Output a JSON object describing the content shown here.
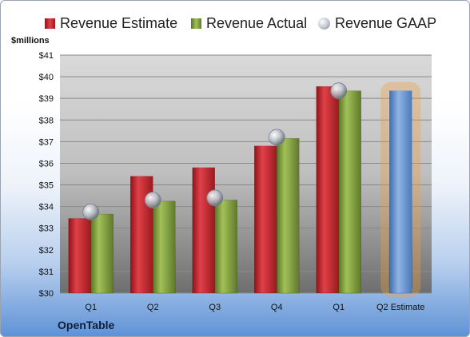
{
  "chart_data": {
    "type": "bar",
    "ylabel": "$millions",
    "ylim": [
      30,
      41
    ],
    "y_ticks": [
      "$30",
      "$31",
      "$32",
      "$33",
      "$34",
      "$35",
      "$36",
      "$37",
      "$38",
      "$39",
      "$40",
      "$41"
    ],
    "categories": [
      "Q1",
      "Q2",
      "Q3",
      "Q4",
      "Q1",
      "Q2 Estimate"
    ],
    "series": [
      {
        "name": "Revenue Estimate",
        "color": "#c0282e",
        "values": [
          33.45,
          35.4,
          35.8,
          36.8,
          39.55,
          null
        ]
      },
      {
        "name": "Revenue Actual",
        "color": "#7f9e3c",
        "values": [
          33.65,
          34.25,
          34.3,
          37.15,
          39.35,
          null
        ]
      },
      {
        "name": "Revenue GAAP",
        "color": "#b8bec8",
        "marker": "circle",
        "values": [
          33.75,
          34.3,
          34.4,
          37.2,
          39.35,
          null
        ]
      }
    ],
    "projection": {
      "category": "Q2 Estimate",
      "value": 39.35,
      "color": "#6f9ad3",
      "glow_color": "#f0a040"
    },
    "grid": true,
    "legend_position": "top",
    "footer": "OpenTable"
  }
}
